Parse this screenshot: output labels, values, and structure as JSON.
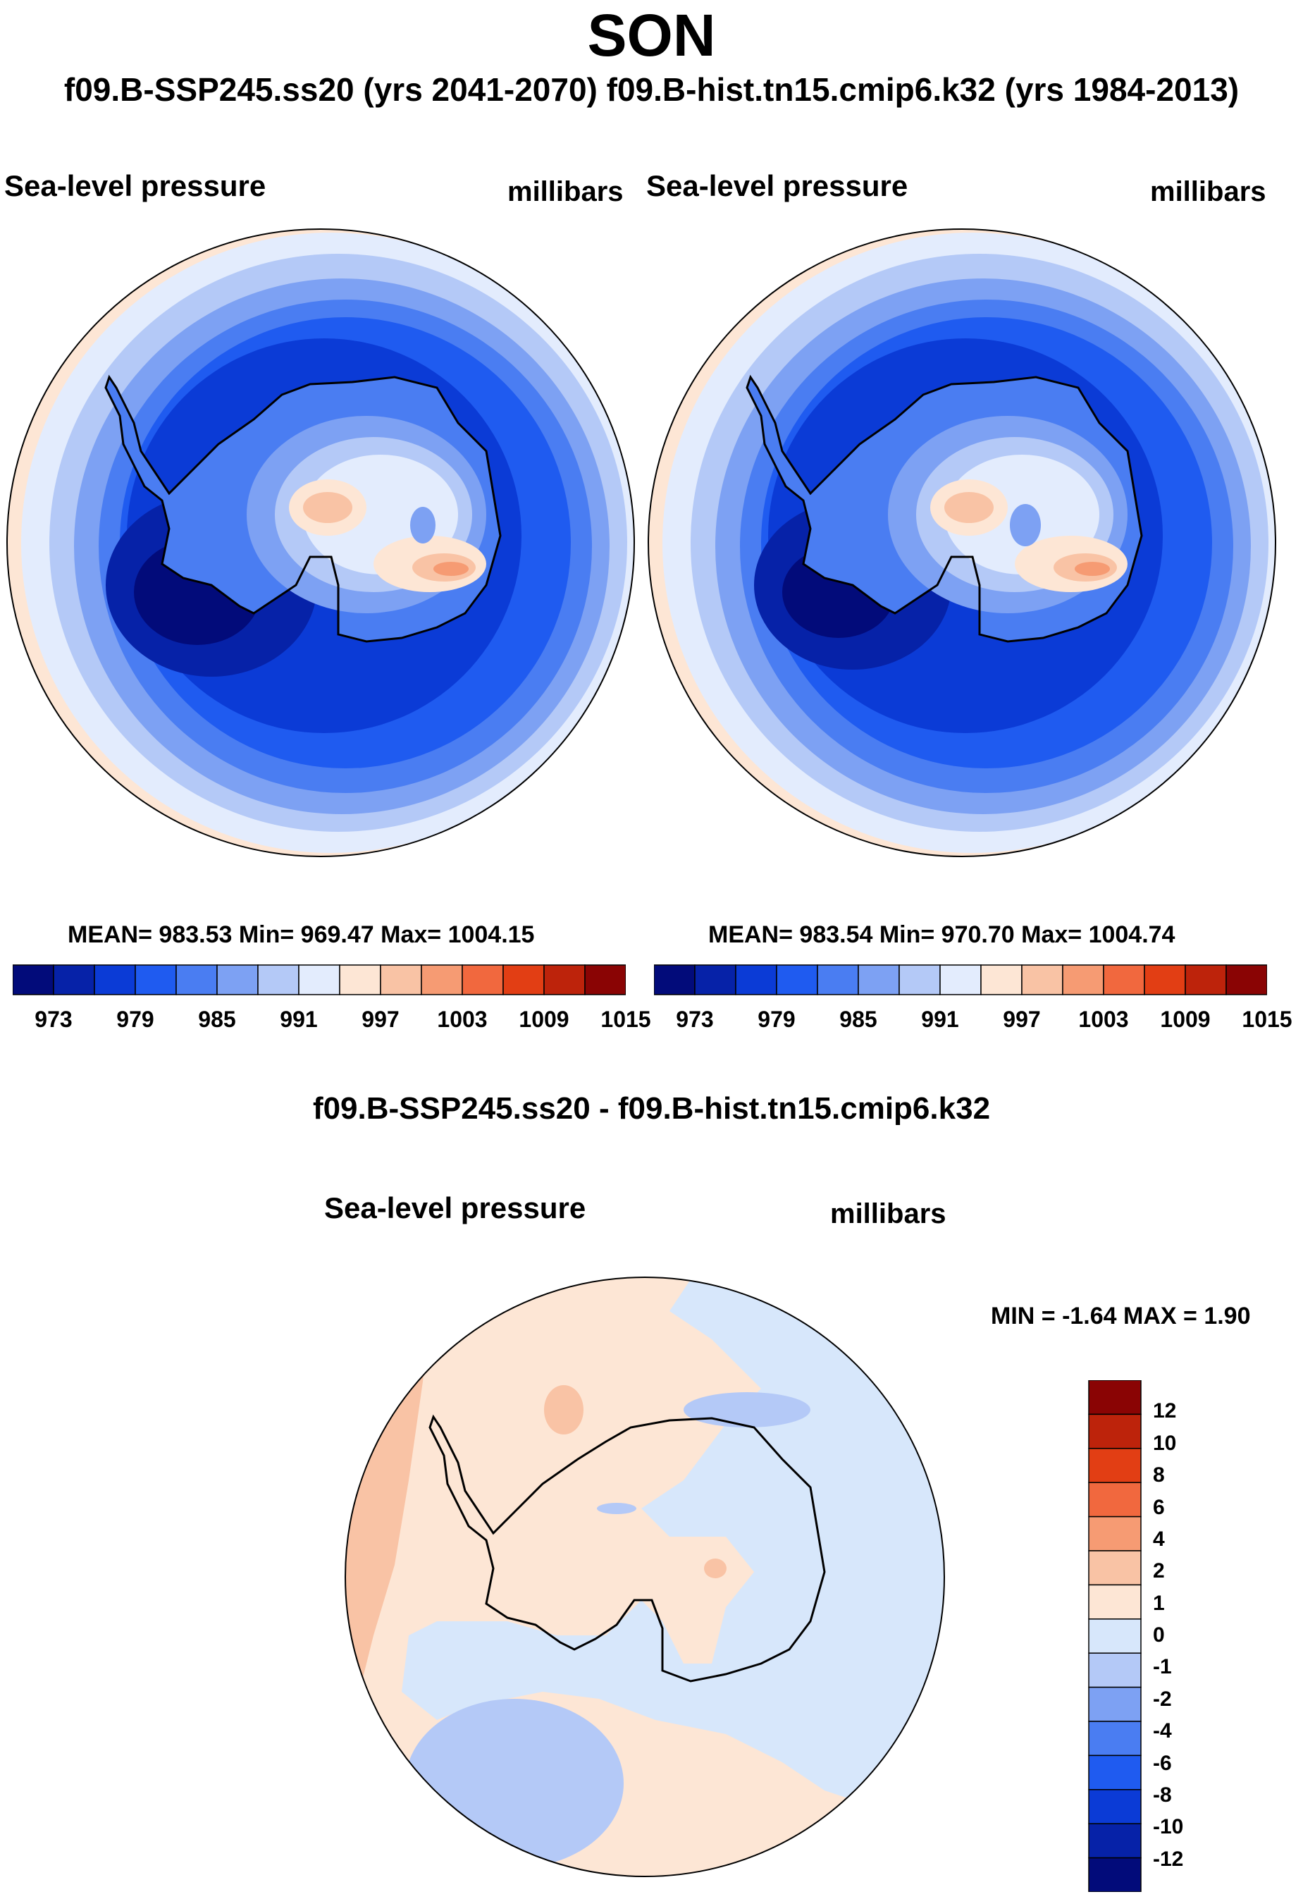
{
  "figure": {
    "season": "SON",
    "case_line": "f09.B-SSP245.ss20 (yrs 2041-2070)  f09.B-hist.tn15.cmip6.k32 (yrs 1984-2013)"
  },
  "chart_data": [
    {
      "type": "contour-map",
      "projection": "south-polar-stereographic",
      "title_left": "Sea-level pressure",
      "title_right": "millibars",
      "stats": "MEAN= 983.53  Min= 969.47  Max= 1004.15",
      "mean": 983.53,
      "min": 969.47,
      "max": 1004.15,
      "levels": [
        970,
        973,
        976,
        979,
        982,
        985,
        988,
        991,
        994,
        997,
        1000,
        1003,
        1006,
        1009,
        1012,
        1015
      ],
      "tick_labels": [
        "973",
        "979",
        "985",
        "991",
        "997",
        "1003",
        "1009",
        "1015"
      ],
      "colors": [
        "#020b7a",
        "#0622a8",
        "#0b3bd6",
        "#1f5bf0",
        "#4a7df2",
        "#7da1f3",
        "#b4c9f7",
        "#e3ecfd",
        "#fde6d5",
        "#f9c3a5",
        "#f69b73",
        "#f1683e",
        "#e23e14",
        "#bd230b",
        "#8a0404"
      ]
    },
    {
      "type": "contour-map",
      "projection": "south-polar-stereographic",
      "title_left": "Sea-level pressure",
      "title_right": "millibars",
      "stats": "MEAN= 983.54  Min= 970.70  Max= 1004.74",
      "mean": 983.54,
      "min": 970.7,
      "max": 1004.74,
      "levels": [
        970,
        973,
        976,
        979,
        982,
        985,
        988,
        991,
        994,
        997,
        1000,
        1003,
        1006,
        1009,
        1012,
        1015
      ],
      "tick_labels": [
        "973",
        "979",
        "985",
        "991",
        "997",
        "1003",
        "1009",
        "1015"
      ],
      "colors": [
        "#020b7a",
        "#0622a8",
        "#0b3bd6",
        "#1f5bf0",
        "#4a7df2",
        "#7da1f3",
        "#b4c9f7",
        "#e3ecfd",
        "#fde6d5",
        "#f9c3a5",
        "#f69b73",
        "#f1683e",
        "#e23e14",
        "#bd230b",
        "#8a0404"
      ]
    },
    {
      "type": "contour-map",
      "projection": "south-polar-stereographic",
      "diff_title": "f09.B-SSP245.ss20 - f09.B-hist.tn15.cmip6.k32",
      "title_left": "Sea-level pressure",
      "title_right": "millibars",
      "stats": "MIN =  -1.64 MAX =   1.90",
      "min": -1.64,
      "max": 1.9,
      "levels": [
        -12,
        -10,
        -8,
        -6,
        -4,
        -2,
        -1,
        0,
        1,
        2,
        4,
        6,
        8,
        10,
        12
      ],
      "tick_labels": [
        "-12",
        "-10",
        "-8",
        "-6",
        "-4",
        "-2",
        "-1",
        "0",
        "1",
        "2",
        "4",
        "6",
        "8",
        "10",
        "12"
      ],
      "colors": [
        "#020b7a",
        "#0622a8",
        "#0b3bd6",
        "#1f5bf0",
        "#4a7df2",
        "#7da1f3",
        "#b4c9f7",
        "#d7e7fb",
        "#fde6d5",
        "#f9c3a5",
        "#f69b73",
        "#f1683e",
        "#e23e14",
        "#bd230b",
        "#8a0404"
      ]
    }
  ]
}
